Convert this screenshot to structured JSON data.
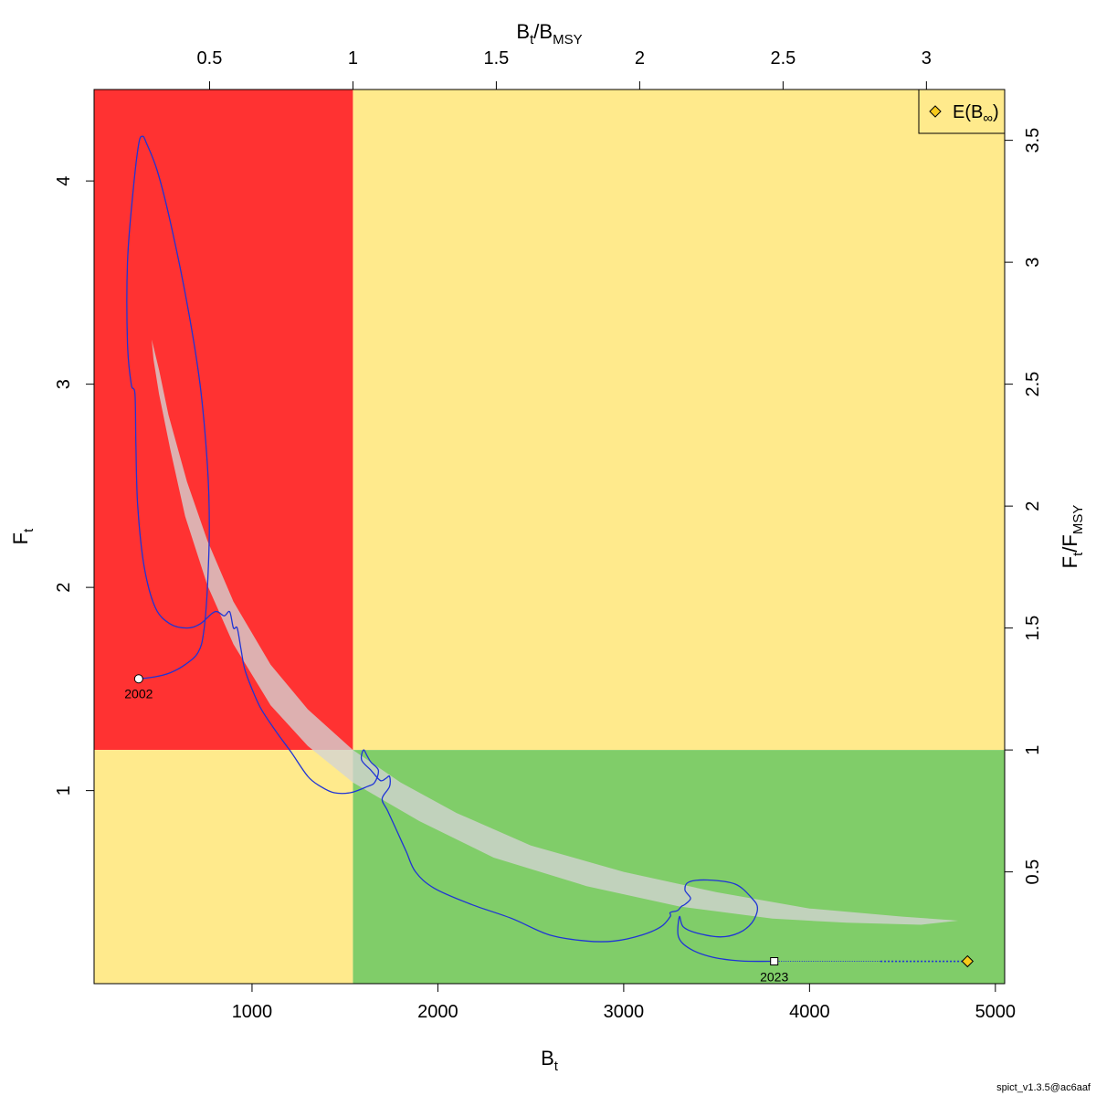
{
  "chart_data": {
    "type": "line",
    "title": "",
    "xlabel": "B",
    "xlabel_sub": "t",
    "ylabel": "F",
    "ylabel_sub": "t",
    "top_label": {
      "b": "B",
      "b_sub": "t",
      "sep": "/",
      "msy": "B",
      "msy_sub": "MSY"
    },
    "right_label": {
      "f": "F",
      "f_sub": "t",
      "sep": "/",
      "msy": "F",
      "msy_sub": "MSY"
    },
    "xlim": [
      150,
      5050
    ],
    "ylim": [
      0.05,
      4.45
    ],
    "bmsy": 1543,
    "fmsy": 1.2,
    "bottom_ticks": [
      "1000",
      "2000",
      "3000",
      "4000",
      "5000"
    ],
    "left_ticks": [
      "1",
      "2",
      "3",
      "4"
    ],
    "top_ticks": [
      "0.5",
      "1",
      "1.5",
      "2",
      "2.5",
      "3"
    ],
    "right_ticks": [
      "0.5",
      "1",
      "1.5",
      "2",
      "2.5",
      "3",
      "3.5"
    ],
    "legend": {
      "label": "E(B",
      "label_sub": "∞",
      "label_end": ")",
      "position": "top-right"
    },
    "colors": {
      "red_zone": "#ff3232",
      "yellow_zone": "#ffea8c",
      "green_zone": "#80cd69",
      "ellipse": "#d3d3d3",
      "trajectory": "#1f34d6",
      "infinity_marker": "#f7ca1b"
    },
    "start": {
      "year": "2002",
      "B": 390,
      "F": 1.55
    },
    "end": {
      "year": "2023",
      "B": 3810,
      "F": 0.16
    },
    "equilibrium": {
      "B": 4850,
      "F": 0.16
    },
    "trajectory": [
      [
        390,
        1.55
      ],
      [
        480,
        1.56
      ],
      [
        560,
        1.58
      ],
      [
        640,
        1.62
      ],
      [
        710,
        1.68
      ],
      [
        740,
        1.78
      ],
      [
        760,
        2.0
      ],
      [
        770,
        2.3
      ],
      [
        760,
        2.6
      ],
      [
        720,
        3.0
      ],
      [
        650,
        3.4
      ],
      [
        560,
        3.8
      ],
      [
        490,
        4.05
      ],
      [
        430,
        4.19
      ],
      [
        410,
        4.22
      ],
      [
        390,
        4.18
      ],
      [
        360,
        3.95
      ],
      [
        330,
        3.6
      ],
      [
        330,
        3.2
      ],
      [
        350,
        3.0
      ],
      [
        370,
        2.95
      ],
      [
        375,
        2.7
      ],
      [
        385,
        2.4
      ],
      [
        420,
        2.1
      ],
      [
        480,
        1.9
      ],
      [
        560,
        1.82
      ],
      [
        650,
        1.8
      ],
      [
        720,
        1.82
      ],
      [
        800,
        1.88
      ],
      [
        850,
        1.86
      ],
      [
        880,
        1.88
      ],
      [
        900,
        1.8
      ],
      [
        920,
        1.8
      ],
      [
        940,
        1.7
      ],
      [
        960,
        1.6
      ],
      [
        1000,
        1.5
      ],
      [
        1050,
        1.4
      ],
      [
        1130,
        1.29
      ],
      [
        1210,
        1.19
      ],
      [
        1300,
        1.07
      ],
      [
        1370,
        1.02
      ],
      [
        1440,
        0.99
      ],
      [
        1530,
        0.99
      ],
      [
        1620,
        1.02
      ],
      [
        1660,
        1.04
      ],
      [
        1680,
        1.1
      ],
      [
        1640,
        1.14
      ],
      [
        1620,
        1.17
      ],
      [
        1600,
        1.2
      ],
      [
        1590,
        1.15
      ],
      [
        1640,
        1.1
      ],
      [
        1690,
        1.05
      ],
      [
        1720,
        1.06
      ],
      [
        1740,
        1.07
      ],
      [
        1740,
        1.02
      ],
      [
        1700,
        0.96
      ],
      [
        1730,
        0.9
      ],
      [
        1780,
        0.8
      ],
      [
        1830,
        0.7
      ],
      [
        1880,
        0.6
      ],
      [
        1980,
        0.52
      ],
      [
        2180,
        0.44
      ],
      [
        2400,
        0.37
      ],
      [
        2600,
        0.29
      ],
      [
        2800,
        0.26
      ],
      [
        2950,
        0.26
      ],
      [
        3100,
        0.29
      ],
      [
        3200,
        0.33
      ],
      [
        3250,
        0.38
      ],
      [
        3250,
        0.4
      ],
      [
        3290,
        0.41
      ],
      [
        3310,
        0.43
      ],
      [
        3330,
        0.44
      ],
      [
        3360,
        0.47
      ],
      [
        3330,
        0.51
      ],
      [
        3350,
        0.55
      ],
      [
        3450,
        0.56
      ],
      [
        3600,
        0.54
      ],
      [
        3690,
        0.47
      ],
      [
        3720,
        0.42
      ],
      [
        3690,
        0.35
      ],
      [
        3620,
        0.3
      ],
      [
        3520,
        0.28
      ],
      [
        3390,
        0.3
      ],
      [
        3320,
        0.33
      ],
      [
        3300,
        0.38
      ],
      [
        3295,
        0.28
      ],
      [
        3360,
        0.22
      ],
      [
        3480,
        0.18
      ],
      [
        3630,
        0.162
      ],
      [
        3810,
        0.16
      ]
    ],
    "ellipse_upper": [
      [
        460,
        3.22
      ],
      [
        500,
        3.07
      ],
      [
        550,
        2.85
      ],
      [
        650,
        2.52
      ],
      [
        760,
        2.23
      ],
      [
        900,
        1.93
      ],
      [
        1100,
        1.62
      ],
      [
        1300,
        1.4
      ],
      [
        1543,
        1.2
      ],
      [
        1800,
        1.04
      ],
      [
        2100,
        0.89
      ],
      [
        2500,
        0.73
      ],
      [
        3000,
        0.6
      ],
      [
        3500,
        0.5
      ],
      [
        4000,
        0.42
      ],
      [
        4500,
        0.38
      ],
      [
        4800,
        0.36
      ]
    ],
    "ellipse_lower": [
      [
        4800,
        0.36
      ],
      [
        4600,
        0.34
      ],
      [
        4200,
        0.35
      ],
      [
        3800,
        0.37
      ],
      [
        3300,
        0.43
      ],
      [
        2800,
        0.53
      ],
      [
        2300,
        0.67
      ],
      [
        1900,
        0.85
      ],
      [
        1543,
        1.04
      ],
      [
        1300,
        1.22
      ],
      [
        1100,
        1.42
      ],
      [
        900,
        1.72
      ],
      [
        760,
        2.01
      ],
      [
        640,
        2.35
      ],
      [
        560,
        2.68
      ],
      [
        500,
        2.95
      ],
      [
        470,
        3.12
      ],
      [
        460,
        3.22
      ]
    ]
  }
}
